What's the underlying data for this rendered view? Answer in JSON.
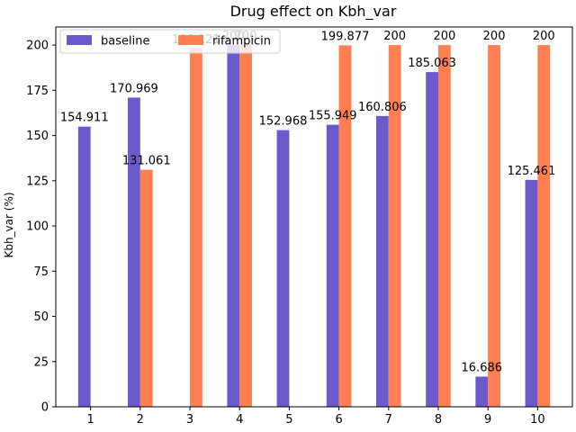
{
  "chart_data": {
    "type": "bar",
    "title": "Drug effect on Kbh_var",
    "xlabel": "",
    "ylabel": "Kbh_var (%)",
    "ylim": [
      0,
      210
    ],
    "yticks": [
      0,
      25,
      50,
      75,
      100,
      125,
      150,
      175,
      200
    ],
    "categories": [
      "1",
      "2",
      "3",
      "4",
      "5",
      "6",
      "7",
      "8",
      "9",
      "10"
    ],
    "series": [
      {
        "name": "baseline",
        "color": "#6a5acd",
        "values": [
          154.911,
          170.969,
          null,
          200,
          152.968,
          155.949,
          160.806,
          185.063,
          16.686,
          125.461
        ],
        "labels": [
          "154.911",
          "170.969",
          "",
          "200",
          "152.968",
          "155.949",
          "160.806",
          "185.063",
          "16.686",
          "125.461"
        ]
      },
      {
        "name": "rifampicin",
        "color": "#ff7f50",
        "values": [
          null,
          131.061,
          198.121,
          200,
          null,
          199.877,
          200,
          200,
          200,
          200
        ],
        "labels": [
          "",
          "131.061",
          "198.121",
          "200",
          "",
          "199.877",
          "200",
          "200",
          "200",
          "200"
        ]
      }
    ],
    "legend": "top-left",
    "grid": false
  }
}
